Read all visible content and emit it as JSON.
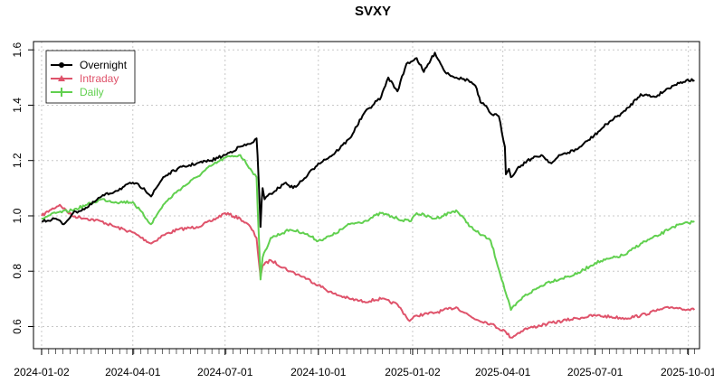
{
  "chart_data": {
    "type": "line",
    "title": "SVXY",
    "xlabel": "",
    "ylabel": "",
    "x_axis": {
      "kind": "date",
      "range": [
        "2023-12-25",
        "2025-10-12"
      ],
      "tick_dates": [
        "2024-01-02",
        "2024-04-01",
        "2024-07-01",
        "2024-10-01",
        "2025-01-02",
        "2025-04-01",
        "2025-07-01",
        "2025-10-01"
      ],
      "tick_labels": [
        "2024-01-02",
        "2024-04-01",
        "2024-07-01",
        "2024-10-01",
        "2025-01-02",
        "2025-04-01",
        "2025-07-01",
        "2025-10-01"
      ]
    },
    "y_axis": {
      "range": [
        0.52,
        1.63
      ],
      "ticks": [
        0.6,
        0.8,
        1.0,
        1.2,
        1.4,
        1.6
      ],
      "tick_labels": [
        "0.6",
        "0.8",
        "1.0",
        "1.2",
        "1.4",
        "1.6"
      ]
    },
    "grid": true,
    "legend": {
      "position": "top-left"
    },
    "series": [
      {
        "name": "Overnight",
        "color": "#000000",
        "marker": "circle",
        "points": [
          [
            "2024-01-02",
            0.98
          ],
          [
            "2024-01-16",
            0.99
          ],
          [
            "2024-01-24",
            0.97
          ],
          [
            "2024-02-02",
            1.01
          ],
          [
            "2024-02-16",
            1.03
          ],
          [
            "2024-03-01",
            1.07
          ],
          [
            "2024-03-15",
            1.09
          ],
          [
            "2024-04-01",
            1.12
          ],
          [
            "2024-04-12",
            1.1
          ],
          [
            "2024-04-19",
            1.07
          ],
          [
            "2024-05-01",
            1.14
          ],
          [
            "2024-05-15",
            1.17
          ],
          [
            "2024-06-03",
            1.19
          ],
          [
            "2024-06-17",
            1.2
          ],
          [
            "2024-07-01",
            1.22
          ],
          [
            "2024-07-16",
            1.25
          ],
          [
            "2024-07-26",
            1.26
          ],
          [
            "2024-08-01",
            1.28
          ],
          [
            "2024-08-02",
            1.22
          ],
          [
            "2024-08-05",
            0.96
          ],
          [
            "2024-08-06",
            1.05
          ],
          [
            "2024-08-07",
            1.1
          ],
          [
            "2024-08-09",
            1.06
          ],
          [
            "2024-08-15",
            1.08
          ],
          [
            "2024-08-30",
            1.12
          ],
          [
            "2024-09-06",
            1.1
          ],
          [
            "2024-09-16",
            1.13
          ],
          [
            "2024-10-01",
            1.19
          ],
          [
            "2024-10-15",
            1.22
          ],
          [
            "2024-11-01",
            1.28
          ],
          [
            "2024-11-15",
            1.37
          ],
          [
            "2024-12-02",
            1.43
          ],
          [
            "2024-12-09",
            1.5
          ],
          [
            "2024-12-18",
            1.45
          ],
          [
            "2024-12-27",
            1.55
          ],
          [
            "2025-01-06",
            1.57
          ],
          [
            "2025-01-13",
            1.52
          ],
          [
            "2025-01-24",
            1.59
          ],
          [
            "2025-02-03",
            1.52
          ],
          [
            "2025-02-14",
            1.5
          ],
          [
            "2025-02-26",
            1.49
          ],
          [
            "2025-03-05",
            1.47
          ],
          [
            "2025-03-10",
            1.41
          ],
          [
            "2025-03-14",
            1.4
          ],
          [
            "2025-03-20",
            1.37
          ],
          [
            "2025-03-28",
            1.36
          ],
          [
            "2025-04-03",
            1.25
          ],
          [
            "2025-04-04",
            1.15
          ],
          [
            "2025-04-07",
            1.17
          ],
          [
            "2025-04-09",
            1.14
          ],
          [
            "2025-04-15",
            1.17
          ],
          [
            "2025-04-25",
            1.2
          ],
          [
            "2025-05-09",
            1.22
          ],
          [
            "2025-05-19",
            1.19
          ],
          [
            "2025-05-28",
            1.22
          ],
          [
            "2025-06-13",
            1.24
          ],
          [
            "2025-06-30",
            1.29
          ],
          [
            "2025-07-15",
            1.34
          ],
          [
            "2025-07-31",
            1.38
          ],
          [
            "2025-08-15",
            1.44
          ],
          [
            "2025-08-29",
            1.43
          ],
          [
            "2025-09-15",
            1.47
          ],
          [
            "2025-09-29",
            1.49
          ],
          [
            "2025-10-07",
            1.49
          ]
        ]
      },
      {
        "name": "Intraday",
        "color": "#DF536B",
        "marker": "triangle",
        "points": [
          [
            "2024-01-02",
            1.0
          ],
          [
            "2024-01-10",
            1.02
          ],
          [
            "2024-01-20",
            1.04
          ],
          [
            "2024-02-01",
            1.0
          ],
          [
            "2024-02-16",
            0.99
          ],
          [
            "2024-03-01",
            0.98
          ],
          [
            "2024-03-15",
            0.96
          ],
          [
            "2024-04-01",
            0.94
          ],
          [
            "2024-04-19",
            0.9
          ],
          [
            "2024-05-01",
            0.93
          ],
          [
            "2024-05-15",
            0.95
          ],
          [
            "2024-06-03",
            0.96
          ],
          [
            "2024-06-17",
            0.98
          ],
          [
            "2024-07-01",
            1.01
          ],
          [
            "2024-07-16",
            0.99
          ],
          [
            "2024-07-26",
            0.96
          ],
          [
            "2024-08-01",
            0.92
          ],
          [
            "2024-08-05",
            0.78
          ],
          [
            "2024-08-07",
            0.82
          ],
          [
            "2024-08-15",
            0.84
          ],
          [
            "2024-09-03",
            0.8
          ],
          [
            "2024-09-16",
            0.78
          ],
          [
            "2024-10-01",
            0.75
          ],
          [
            "2024-10-15",
            0.72
          ],
          [
            "2024-11-01",
            0.7
          ],
          [
            "2024-11-15",
            0.69
          ],
          [
            "2024-12-02",
            0.7
          ],
          [
            "2024-12-18",
            0.68
          ],
          [
            "2024-12-30",
            0.62
          ],
          [
            "2025-01-06",
            0.64
          ],
          [
            "2025-01-24",
            0.65
          ],
          [
            "2025-02-14",
            0.67
          ],
          [
            "2025-03-03",
            0.63
          ],
          [
            "2025-03-20",
            0.61
          ],
          [
            "2025-04-04",
            0.58
          ],
          [
            "2025-04-09",
            0.56
          ],
          [
            "2025-04-22",
            0.59
          ],
          [
            "2025-05-15",
            0.61
          ],
          [
            "2025-06-13",
            0.63
          ],
          [
            "2025-07-01",
            0.64
          ],
          [
            "2025-07-31",
            0.63
          ],
          [
            "2025-08-15",
            0.64
          ],
          [
            "2025-09-02",
            0.66
          ],
          [
            "2025-09-15",
            0.67
          ],
          [
            "2025-10-07",
            0.66
          ]
        ]
      },
      {
        "name": "Daily",
        "color": "#61D04F",
        "marker": "plus",
        "points": [
          [
            "2024-01-02",
            0.99
          ],
          [
            "2024-01-16",
            1.01
          ],
          [
            "2024-02-01",
            1.02
          ],
          [
            "2024-02-16",
            1.04
          ],
          [
            "2024-03-01",
            1.06
          ],
          [
            "2024-03-15",
            1.05
          ],
          [
            "2024-04-01",
            1.05
          ],
          [
            "2024-04-19",
            0.97
          ],
          [
            "2024-05-01",
            1.04
          ],
          [
            "2024-05-15",
            1.09
          ],
          [
            "2024-06-03",
            1.14
          ],
          [
            "2024-06-17",
            1.18
          ],
          [
            "2024-07-01",
            1.21
          ],
          [
            "2024-07-16",
            1.22
          ],
          [
            "2024-07-26",
            1.17
          ],
          [
            "2024-08-01",
            1.14
          ],
          [
            "2024-08-05",
            0.77
          ],
          [
            "2024-08-07",
            0.85
          ],
          [
            "2024-08-15",
            0.92
          ],
          [
            "2024-09-03",
            0.95
          ],
          [
            "2024-09-16",
            0.94
          ],
          [
            "2024-10-01",
            0.91
          ],
          [
            "2024-10-15",
            0.93
          ],
          [
            "2024-11-01",
            0.97
          ],
          [
            "2024-11-15",
            0.98
          ],
          [
            "2024-12-02",
            1.01
          ],
          [
            "2024-12-18",
            0.99
          ],
          [
            "2024-12-30",
            0.98
          ],
          [
            "2025-01-06",
            1.01
          ],
          [
            "2025-01-24",
            0.99
          ],
          [
            "2025-02-14",
            1.02
          ],
          [
            "2025-03-03",
            0.95
          ],
          [
            "2025-03-20",
            0.91
          ],
          [
            "2025-04-04",
            0.72
          ],
          [
            "2025-04-09",
            0.66
          ],
          [
            "2025-04-22",
            0.71
          ],
          [
            "2025-05-15",
            0.76
          ],
          [
            "2025-06-13",
            0.79
          ],
          [
            "2025-07-01",
            0.83
          ],
          [
            "2025-07-31",
            0.86
          ],
          [
            "2025-08-15",
            0.9
          ],
          [
            "2025-09-02",
            0.93
          ],
          [
            "2025-09-15",
            0.96
          ],
          [
            "2025-10-07",
            0.98
          ]
        ]
      }
    ]
  }
}
